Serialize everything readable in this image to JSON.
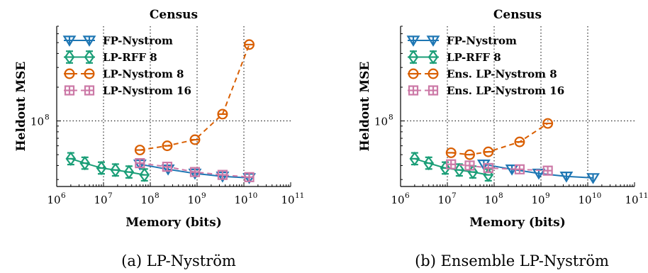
{
  "captions": [
    "(a) LP-Nyström",
    "(b) Ensemble LP-Nyström"
  ],
  "chart_data": [
    {
      "type": "line",
      "title": "Census",
      "xlabel": "Memory (bits)",
      "ylabel": "Heldout MSE",
      "x_scale": "log",
      "y_scale": "log",
      "xlim": [
        1000000,
        100000000000
      ],
      "ylim": [
        26000000,
        700000000
      ],
      "x_ticks": [
        {
          "value": 1000000,
          "base": "10",
          "exp": "6"
        },
        {
          "value": 10000000,
          "base": "10",
          "exp": "7"
        },
        {
          "value": 100000000,
          "base": "10",
          "exp": "8"
        },
        {
          "value": 1000000000,
          "base": "10",
          "exp": "9"
        },
        {
          "value": 10000000000,
          "base": "10",
          "exp": "10"
        },
        {
          "value": 100000000000,
          "base": "10",
          "exp": "11"
        }
      ],
      "y_ticks": [
        {
          "value": 100000000,
          "base": "10",
          "exp": "8"
        }
      ],
      "grid": true,
      "legend_position": "top-left",
      "series": [
        {
          "name": "FP-Nystrom",
          "color": "#1f77b4",
          "marker": "triangle-down",
          "dashed": false,
          "x": [
            60000000,
            240000000,
            900000000,
            3500000000,
            13000000000
          ],
          "y": [
            41000000,
            37000000,
            34000000,
            32000000,
            31000000
          ]
        },
        {
          "name": "LP-RFF 8",
          "color": "#1a9e77",
          "marker": "diamond-plus",
          "dashed": false,
          "x": [
            2000000,
            4000000,
            9000000,
            18000000,
            35000000,
            75000000
          ],
          "y": [
            46000000,
            42000000,
            38000000,
            36500000,
            35000000,
            33000000
          ]
        },
        {
          "name": "LP-Nystrom 8",
          "color": "#d95f02",
          "marker": "circle-bar",
          "dashed": true,
          "x": [
            60000000,
            230000000,
            900000000,
            3500000000,
            13000000000
          ],
          "y": [
            55000000,
            60000000,
            68000000,
            115000000,
            480000000
          ]
        },
        {
          "name": "LP-Nystrom 16",
          "color": "#cc79a7",
          "marker": "square-plus",
          "dashed": true,
          "x": [
            60000000,
            230000000,
            900000000,
            3500000000,
            13000000000
          ],
          "y": [
            42000000,
            39000000,
            35000000,
            33000000,
            31500000
          ]
        }
      ]
    },
    {
      "type": "line",
      "title": "Census",
      "xlabel": "Memory (bits)",
      "ylabel": "Heldout MSE",
      "x_scale": "log",
      "y_scale": "log",
      "xlim": [
        1000000,
        100000000000
      ],
      "ylim": [
        26000000,
        700000000
      ],
      "x_ticks": [
        {
          "value": 1000000,
          "base": "10",
          "exp": "6"
        },
        {
          "value": 10000000,
          "base": "10",
          "exp": "7"
        },
        {
          "value": 100000000,
          "base": "10",
          "exp": "8"
        },
        {
          "value": 1000000000,
          "base": "10",
          "exp": "9"
        },
        {
          "value": 10000000000,
          "base": "10",
          "exp": "10"
        },
        {
          "value": 100000000000,
          "base": "10",
          "exp": "11"
        }
      ],
      "y_ticks": [
        {
          "value": 100000000,
          "base": "10",
          "exp": "8"
        }
      ],
      "grid": true,
      "legend_position": "top-left",
      "series": [
        {
          "name": "FP-Nystrom",
          "color": "#1f77b4",
          "marker": "triangle-down",
          "dashed": false,
          "x": [
            60000000,
            240000000,
            900000000,
            3500000000,
            13000000000
          ],
          "y": [
            41000000,
            37000000,
            34000000,
            32000000,
            31000000
          ]
        },
        {
          "name": "LP-RFF 8",
          "color": "#1a9e77",
          "marker": "diamond-plus",
          "dashed": false,
          "x": [
            2000000,
            4000000,
            9000000,
            18000000,
            35000000,
            75000000
          ],
          "y": [
            46000000,
            42000000,
            38000000,
            36500000,
            35000000,
            33000000
          ]
        },
        {
          "name": "Ens. LP-Nystrom 8",
          "color": "#d95f02",
          "marker": "circle-bar",
          "dashed": true,
          "x": [
            12000000,
            30000000,
            75000000,
            350000000,
            1400000000
          ],
          "y": [
            52000000,
            50000000,
            53000000,
            65000000,
            95000000
          ]
        },
        {
          "name": "Ens. LP-Nystrom 16",
          "color": "#cc79a7",
          "marker": "square-plus",
          "dashed": true,
          "x": [
            12000000,
            30000000,
            75000000,
            350000000,
            1400000000
          ],
          "y": [
            41000000,
            40000000,
            38000000,
            37000000,
            36000000
          ]
        }
      ]
    }
  ]
}
